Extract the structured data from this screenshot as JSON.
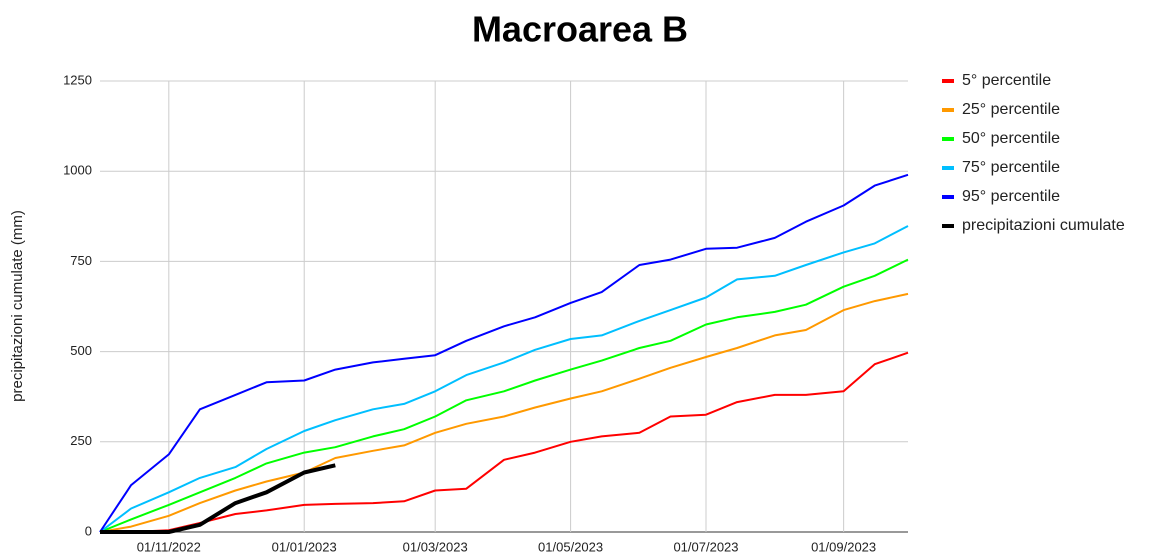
{
  "chart_data": {
    "type": "line",
    "title": "Macroarea B",
    "y_label": "precipitazioni cumulate (mm)",
    "x": [
      "2022-10-01",
      "2022-10-15",
      "2022-11-01",
      "2022-11-15",
      "2022-12-01",
      "2022-12-15",
      "2023-01-01",
      "2023-01-15",
      "2023-02-01",
      "2023-02-15",
      "2023-03-01",
      "2023-03-15",
      "2023-04-01",
      "2023-04-15",
      "2023-05-01",
      "2023-05-15",
      "2023-06-01",
      "2023-06-15",
      "2023-07-01",
      "2023-07-15",
      "2023-08-01",
      "2023-08-15",
      "2023-09-01",
      "2023-09-15",
      "2023-09-30"
    ],
    "series": [
      {
        "name": "5° percentile",
        "color": "#ff0000",
        "values": [
          0,
          0,
          5,
          25,
          50,
          60,
          75,
          78,
          80,
          85,
          115,
          120,
          200,
          220,
          250,
          265,
          275,
          320,
          325,
          360,
          380,
          380,
          390,
          465,
          497
        ]
      },
      {
        "name": "25° percentile",
        "color": "#ff9900",
        "values": [
          0,
          15,
          45,
          80,
          115,
          140,
          165,
          205,
          225,
          240,
          275,
          300,
          320,
          345,
          370,
          390,
          425,
          455,
          485,
          510,
          545,
          560,
          615,
          640,
          660
        ]
      },
      {
        "name": "50° percentile",
        "color": "#00ff00",
        "values": [
          0,
          35,
          75,
          110,
          150,
          190,
          220,
          235,
          265,
          285,
          320,
          365,
          390,
          420,
          450,
          475,
          510,
          530,
          575,
          595,
          610,
          630,
          680,
          710,
          755
        ]
      },
      {
        "name": "75° percentile",
        "color": "#00bfff",
        "values": [
          0,
          65,
          110,
          150,
          180,
          230,
          280,
          310,
          340,
          355,
          390,
          435,
          470,
          505,
          535,
          545,
          585,
          615,
          650,
          700,
          710,
          740,
          775,
          800,
          848
        ]
      },
      {
        "name": "95° percentile",
        "color": "#0000ff",
        "values": [
          0,
          130,
          215,
          340,
          380,
          415,
          420,
          450,
          470,
          480,
          490,
          530,
          570,
          595,
          635,
          665,
          740,
          755,
          785,
          788,
          815,
          860,
          905,
          960,
          990
        ]
      },
      {
        "name": "precipitazioni cumulate",
        "color": "#000000",
        "width": 4,
        "values": [
          0,
          0,
          0,
          20,
          80,
          110,
          165,
          185,
          null,
          null,
          null,
          null,
          null,
          null,
          null,
          null,
          null,
          null,
          null,
          null,
          null,
          null,
          null,
          null,
          null
        ]
      }
    ],
    "xlim": [
      "2022-10-01",
      "2023-09-30"
    ],
    "xticks": [
      {
        "value": "2022-11-01",
        "label": "01/11/2022"
      },
      {
        "value": "2023-01-01",
        "label": "01/01/2023"
      },
      {
        "value": "2023-03-01",
        "label": "01/03/2023"
      },
      {
        "value": "2023-05-01",
        "label": "01/05/2023"
      },
      {
        "value": "2023-07-01",
        "label": "01/07/2023"
      },
      {
        "value": "2023-09-01",
        "label": "01/09/2023"
      }
    ],
    "ylim": [
      0,
      1250
    ],
    "yticks": [
      0,
      250,
      500,
      750,
      1000,
      1250
    ],
    "grid": true,
    "legend": "right"
  }
}
